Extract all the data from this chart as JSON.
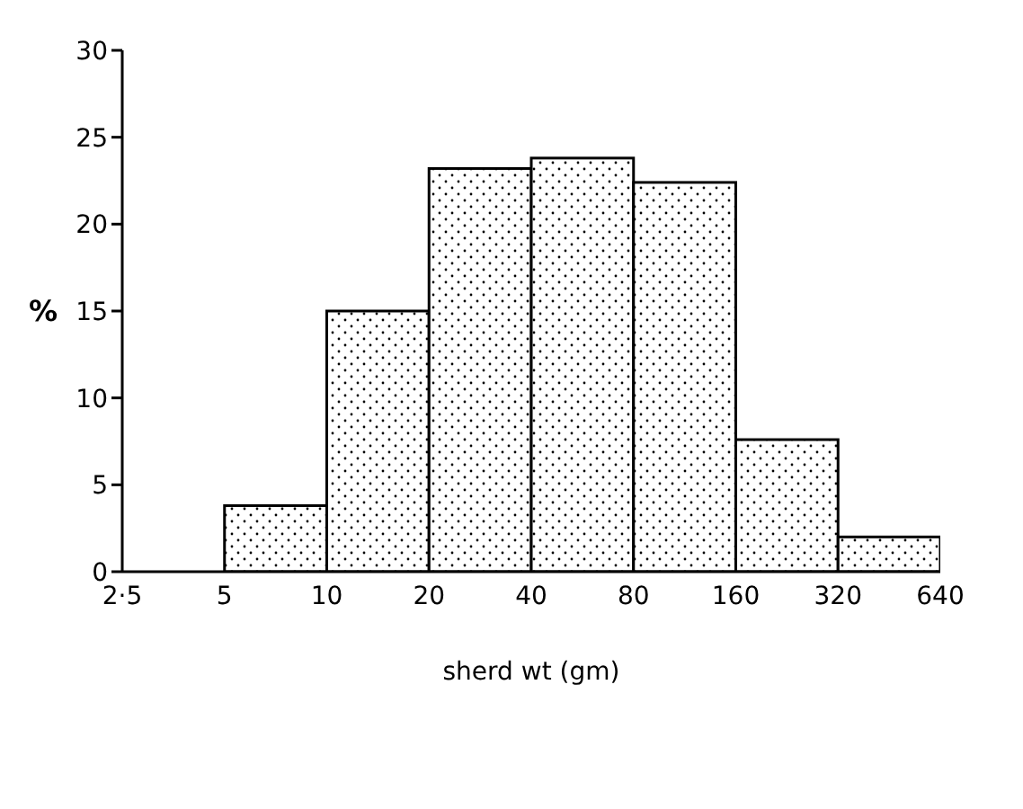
{
  "chart_data": {
    "type": "histogram",
    "xlabel": "sherd wt (gm)",
    "ylabel": "%",
    "bins": [
      2.5,
      5,
      10,
      20,
      40,
      80,
      160,
      320,
      640
    ],
    "values": [
      0,
      3.8,
      15,
      23.2,
      23.8,
      22.4,
      7.6,
      2
    ],
    "color": "#000000",
    "log": "x",
    "xlim": [
      2.5,
      640
    ],
    "xticks": [
      {
        "value": 2.5,
        "label": "2·5"
      },
      5,
      10,
      20,
      40,
      80,
      160,
      320,
      640
    ],
    "ylim": [
      0,
      30
    ],
    "yticks": [
      0,
      5,
      10,
      15,
      20,
      25,
      30
    ]
  }
}
